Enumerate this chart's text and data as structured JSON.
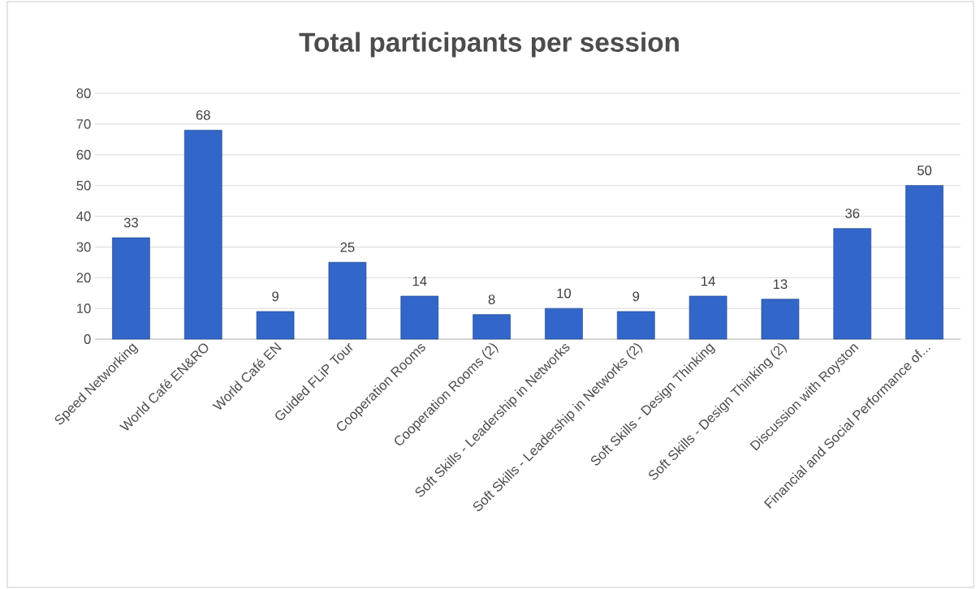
{
  "chart_data": {
    "type": "bar",
    "title": "Total participants per session",
    "categories": [
      "Speed Networking",
      "World Café EN&RO",
      "World Café EN",
      "Guided FLiP Tour",
      "Cooperation Rooms",
      "Cooperation Rooms (2)",
      "Soft Skills - Leadership in Networks",
      "Soft Skills - Leadership in Networks (2)",
      "Soft Skills - Design Thinking",
      "Soft Skills - Design Thinking (2)",
      "Discussion with Royston",
      "Financial and Social Performance of..."
    ],
    "values": [
      33,
      68,
      9,
      25,
      14,
      8,
      10,
      9,
      14,
      13,
      36,
      50
    ],
    "color": "#3266c8",
    "ylim": [
      0,
      80
    ],
    "yticks": [
      0,
      10,
      20,
      30,
      40,
      50,
      60,
      70,
      80
    ],
    "grid": "y",
    "data_labels": true
  }
}
